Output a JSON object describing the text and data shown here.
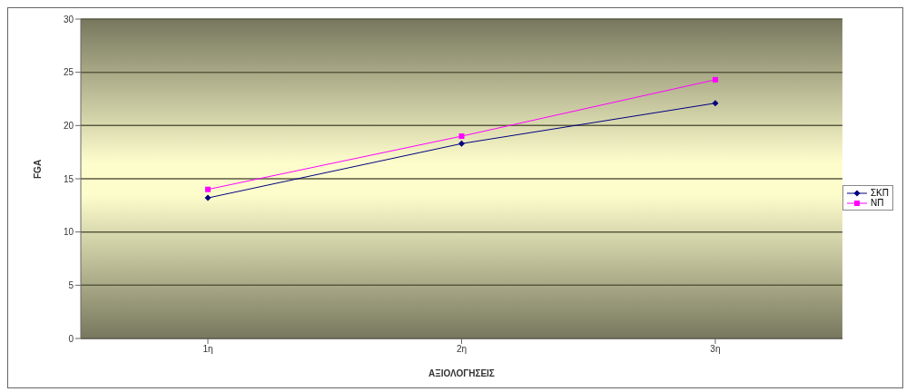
{
  "chart_data": {
    "type": "line",
    "xlabel": "ΑΞΙΟΛΟΓΗΣΕΙΣ",
    "ylabel": "FGA",
    "categories": [
      "1η",
      "2η",
      "3η"
    ],
    "series": [
      {
        "name": "ΣΚΠ",
        "color": "#000080",
        "marker": "diamond",
        "values": [
          13.2,
          18.3,
          22.1
        ]
      },
      {
        "name": "ΝΠ",
        "color": "#ff00ff",
        "marker": "square",
        "values": [
          14.0,
          19.0,
          24.3
        ]
      }
    ],
    "ylim": [
      0,
      30
    ],
    "yticks": [
      0,
      5,
      10,
      15,
      20,
      25,
      30
    ],
    "grid": "y",
    "legend": "right"
  }
}
